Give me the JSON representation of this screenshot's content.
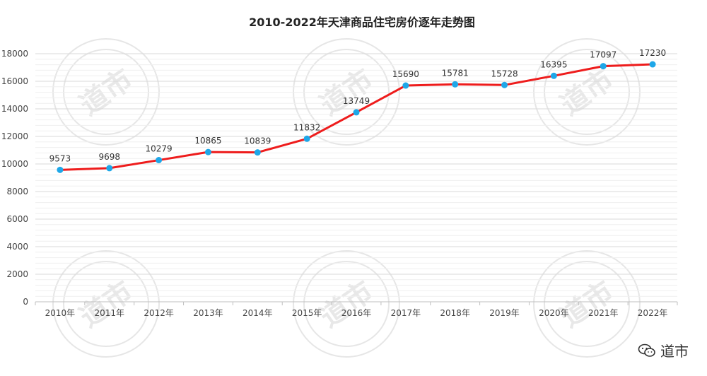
{
  "chart_data": {
    "type": "line",
    "title": "2010-2022年天津商品住宅房价逐年走势图",
    "categories": [
      "2010年",
      "2011年",
      "2012年",
      "2013年",
      "2014年",
      "2015年",
      "2016年",
      "2017年",
      "2018年",
      "2019年",
      "2020年",
      "2021年",
      "2022年"
    ],
    "values": [
      9573,
      9698,
      10279,
      10865,
      10839,
      11832,
      13749,
      15690,
      15781,
      15728,
      16395,
      17097,
      17230
    ],
    "ylim": [
      0,
      18000
    ],
    "yticks": [
      0,
      2000,
      4000,
      6000,
      8000,
      10000,
      12000,
      14000,
      16000,
      18000
    ],
    "grid": true,
    "line_color": "#ee1c1c",
    "marker_color": "#1ea7e8"
  },
  "watermark": {
    "text": "道市"
  },
  "brand": {
    "icon": "wechat-icon",
    "text": "道市"
  }
}
